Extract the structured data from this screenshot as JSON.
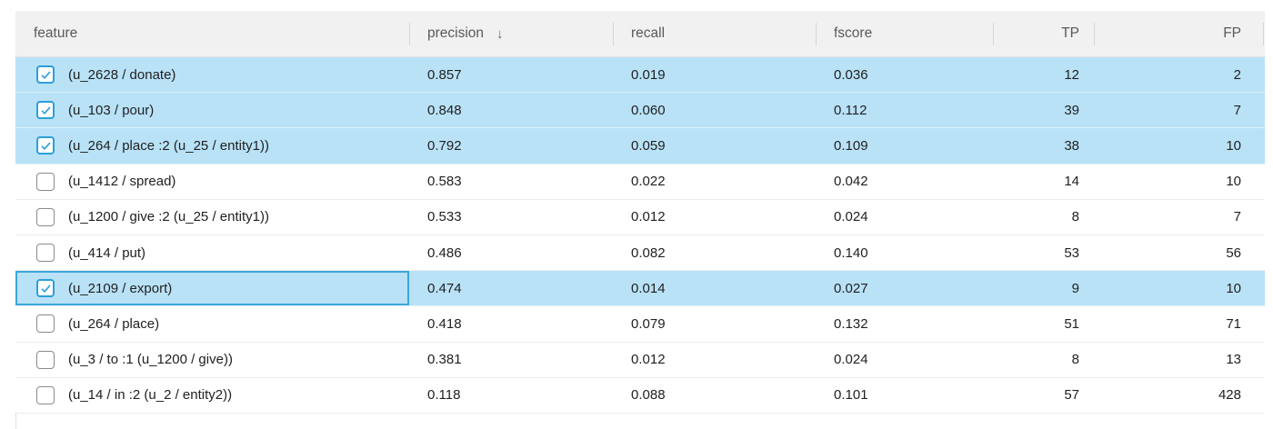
{
  "table": {
    "columns": [
      {
        "key": "feature",
        "label": "feature",
        "align": "left",
        "sorted": false
      },
      {
        "key": "precision",
        "label": "precision",
        "align": "left",
        "sorted": true
      },
      {
        "key": "recall",
        "label": "recall",
        "align": "left",
        "sorted": false
      },
      {
        "key": "fscore",
        "label": "fscore",
        "align": "left",
        "sorted": false
      },
      {
        "key": "tp",
        "label": "TP",
        "align": "right",
        "sorted": false
      },
      {
        "key": "fp",
        "label": "FP",
        "align": "right",
        "sorted": false
      }
    ],
    "sort_arrow": "↓",
    "sort_column": "precision",
    "sort_direction": "descending",
    "rows": [
      {
        "feature": "(u_2628 / donate)",
        "precision": "0.857",
        "recall": "0.019",
        "fscore": "0.036",
        "tp": "12",
        "fp": "2",
        "checked": true,
        "highlighted": true,
        "focused": false
      },
      {
        "feature": "(u_103 / pour)",
        "precision": "0.848",
        "recall": "0.060",
        "fscore": "0.112",
        "tp": "39",
        "fp": "7",
        "checked": true,
        "highlighted": true,
        "focused": false
      },
      {
        "feature": "(u_264 / place :2 (u_25 / entity1))",
        "precision": "0.792",
        "recall": "0.059",
        "fscore": "0.109",
        "tp": "38",
        "fp": "10",
        "checked": true,
        "highlighted": true,
        "focused": false
      },
      {
        "feature": "(u_1412 / spread)",
        "precision": "0.583",
        "recall": "0.022",
        "fscore": "0.042",
        "tp": "14",
        "fp": "10",
        "checked": false,
        "highlighted": false,
        "focused": false
      },
      {
        "feature": "(u_1200 / give :2 (u_25 / entity1))",
        "precision": "0.533",
        "recall": "0.012",
        "fscore": "0.024",
        "tp": "8",
        "fp": "7",
        "checked": false,
        "highlighted": false,
        "focused": false
      },
      {
        "feature": "(u_414 / put)",
        "precision": "0.486",
        "recall": "0.082",
        "fscore": "0.140",
        "tp": "53",
        "fp": "56",
        "checked": false,
        "highlighted": false,
        "focused": false
      },
      {
        "feature": "(u_2109 / export)",
        "precision": "0.474",
        "recall": "0.014",
        "fscore": "0.027",
        "tp": "9",
        "fp": "10",
        "checked": true,
        "highlighted": true,
        "focused": true
      },
      {
        "feature": "(u_264 / place)",
        "precision": "0.418",
        "recall": "0.079",
        "fscore": "0.132",
        "tp": "51",
        "fp": "71",
        "checked": false,
        "highlighted": false,
        "focused": false
      },
      {
        "feature": "(u_3 / to :1 (u_1200 / give))",
        "precision": "0.381",
        "recall": "0.012",
        "fscore": "0.024",
        "tp": "8",
        "fp": "13",
        "checked": false,
        "highlighted": false,
        "focused": false
      },
      {
        "feature": "(u_14 / in :2 (u_2 / entity2))",
        "precision": "0.118",
        "recall": "0.088",
        "fscore": "0.101",
        "tp": "57",
        "fp": "428",
        "checked": false,
        "highlighted": false,
        "focused": false
      }
    ]
  },
  "colors": {
    "header_bg": "#f1f1f1",
    "header_text": "#595959",
    "body_text": "#212121",
    "row_highlight": "#b9e2f7",
    "checkbox_accent": "#2b9fd9",
    "focus_border": "#3da6dc",
    "row_separator": "#ececec",
    "highlight_separator": "#e0f2fc",
    "header_tick": "#d6d6d6"
  }
}
